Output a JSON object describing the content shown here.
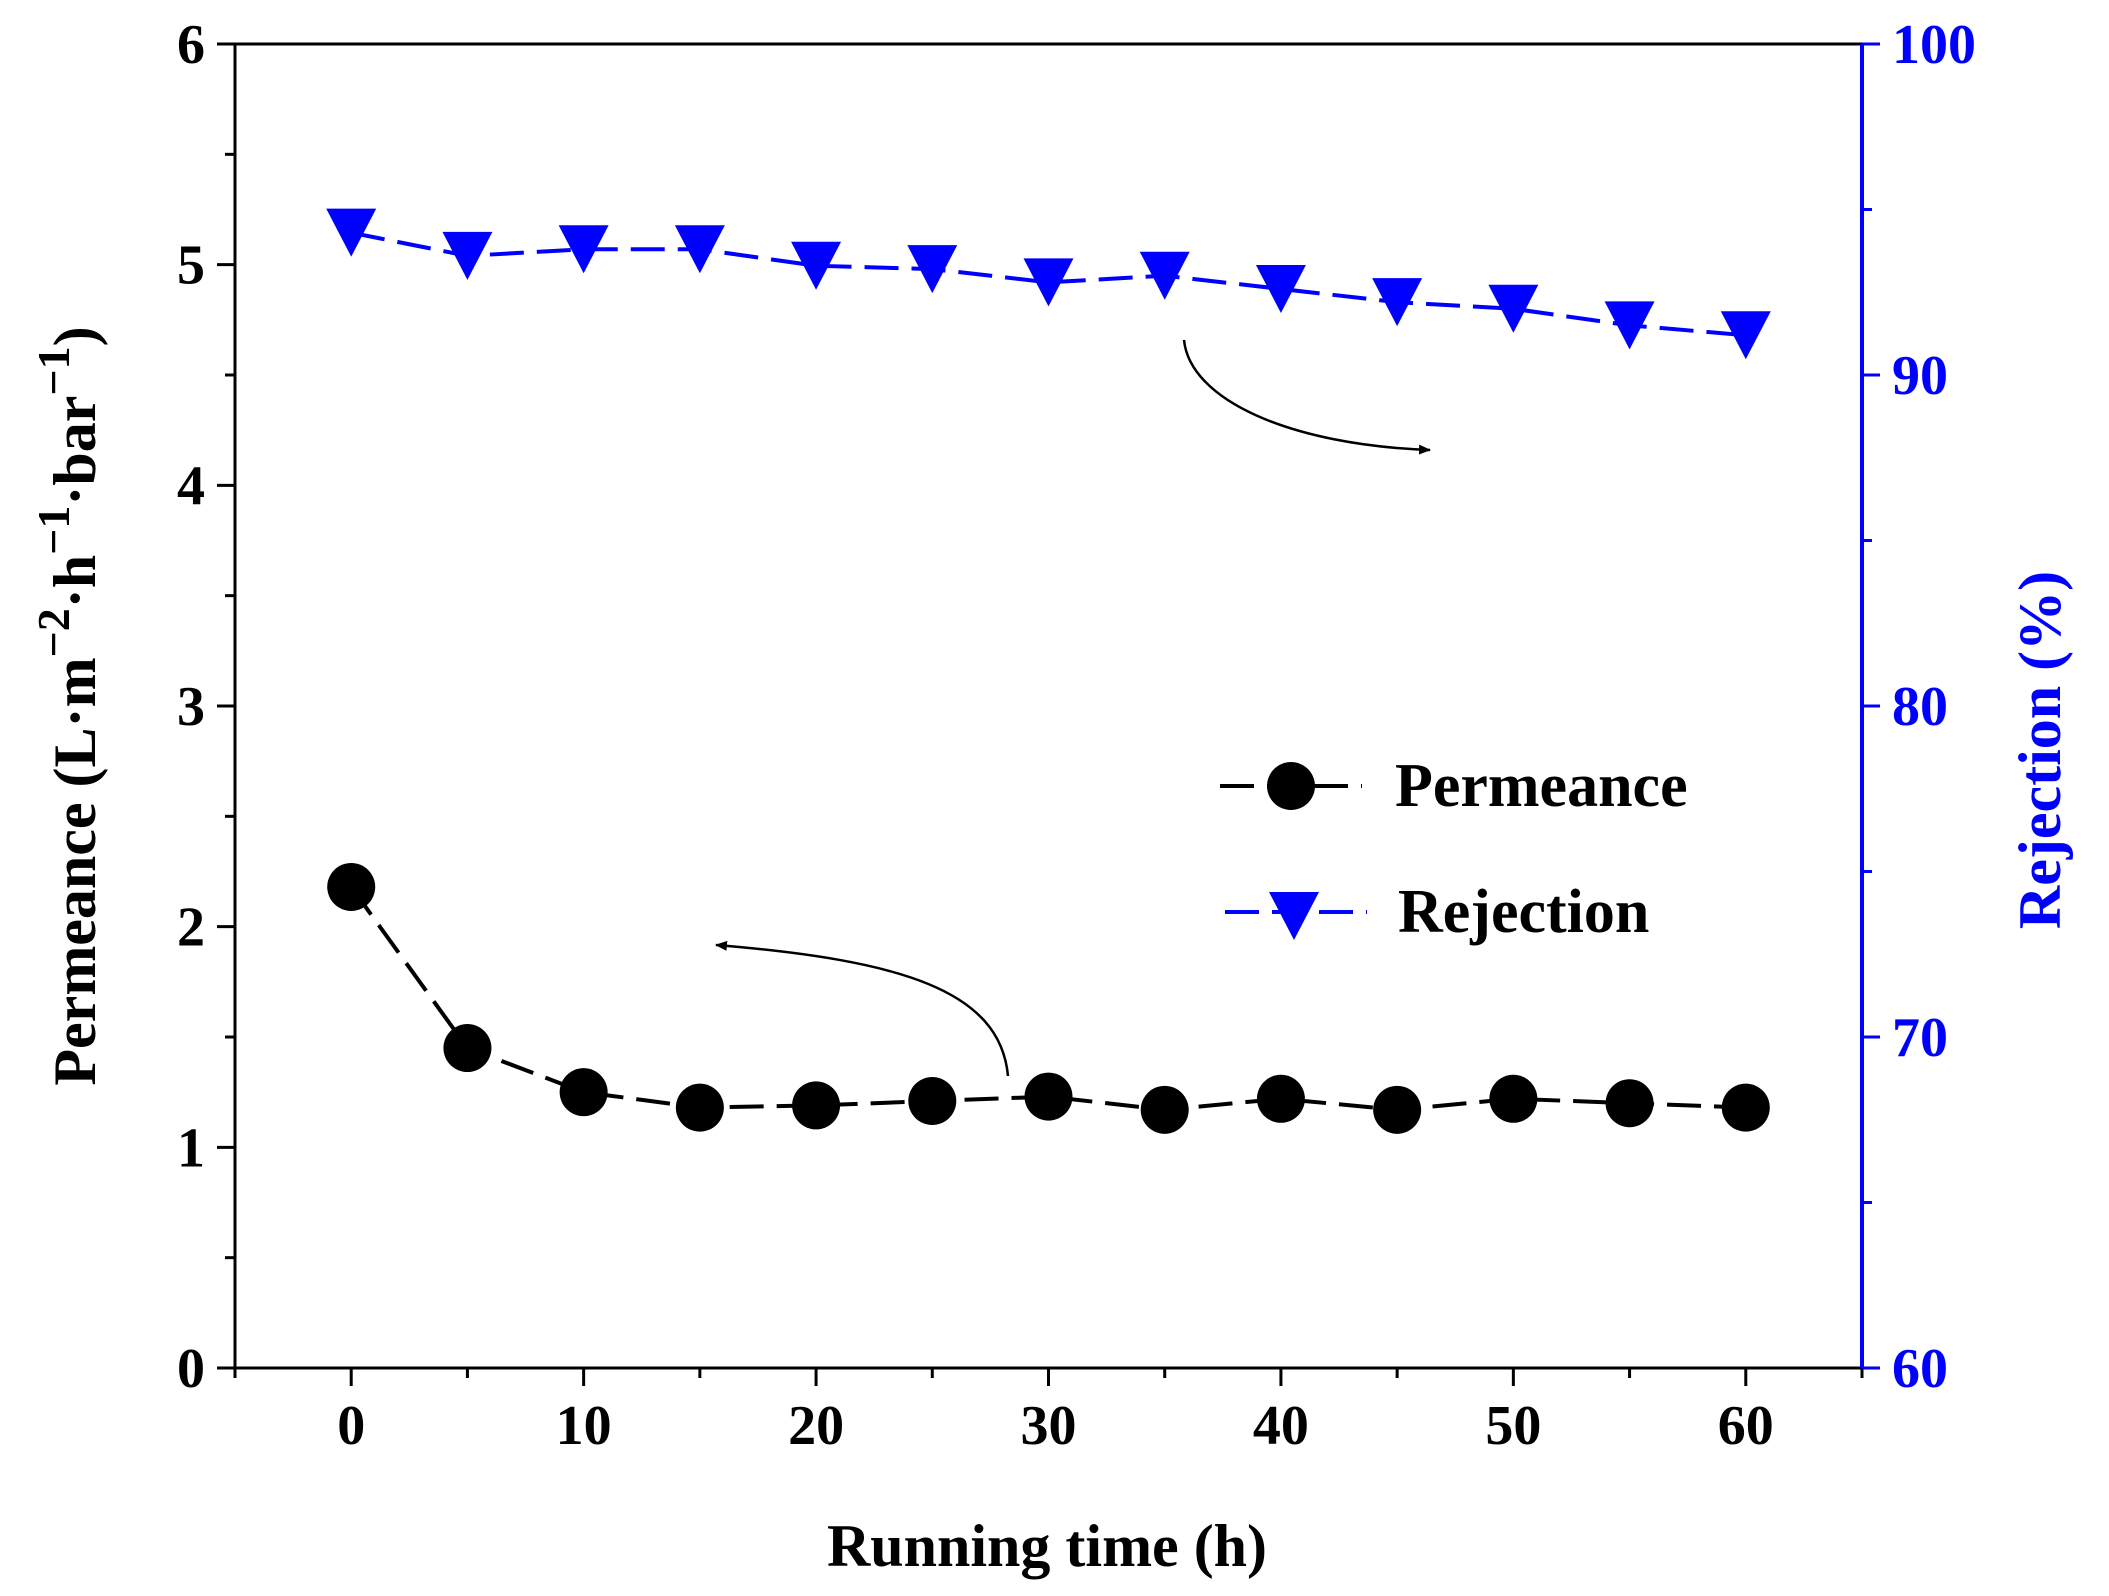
{
  "chart_data": {
    "type": "line",
    "title": "",
    "x": [
      0,
      5,
      10,
      15,
      20,
      25,
      30,
      35,
      40,
      45,
      50,
      55,
      60
    ],
    "xlabel": "Running time (h)",
    "xlim": [
      -5,
      65
    ],
    "xticks": [
      0,
      10,
      20,
      30,
      40,
      50,
      60
    ],
    "ylabel_left": {
      "base": "Permeance (L·m",
      "sup1": "−2",
      "mid1": "·h",
      "sup2": "−1",
      "mid2": "·bar",
      "sup3": "−1",
      "end": ")"
    },
    "ylim_left": [
      0,
      6
    ],
    "yticks_left": [
      0,
      1,
      2,
      3,
      4,
      5,
      6
    ],
    "ylabel_right": "Rejection (%)",
    "ylim_right": [
      60,
      100
    ],
    "yticks_right": [
      60,
      70,
      80,
      90,
      100
    ],
    "series": [
      {
        "name": "Permeance",
        "axis": "left",
        "color": "#000000",
        "marker": "circle",
        "values": [
          2.18,
          1.45,
          1.25,
          1.18,
          1.19,
          1.21,
          1.23,
          1.17,
          1.22,
          1.17,
          1.22,
          1.2,
          1.18
        ]
      },
      {
        "name": "Rejection",
        "axis": "right",
        "color": "#0000ff",
        "marker": "triangle-down",
        "values": [
          94.3,
          93.6,
          93.8,
          93.8,
          93.3,
          93.2,
          92.8,
          93.0,
          92.6,
          92.2,
          92.0,
          91.5,
          91.2
        ]
      }
    ],
    "legend": {
      "position": "center-right"
    },
    "annotations": [
      {
        "type": "arrow",
        "points_to": "right-axis",
        "series": "Rejection"
      },
      {
        "type": "arrow",
        "points_to": "left-axis",
        "series": "Permeance"
      }
    ]
  }
}
